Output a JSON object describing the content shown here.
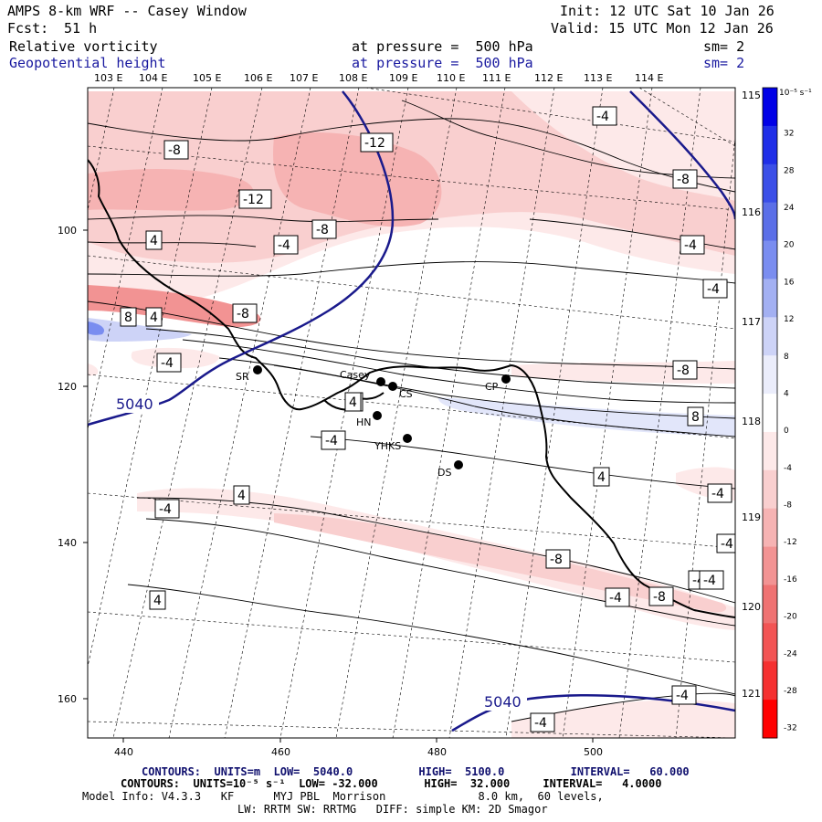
{
  "header": {
    "title": "AMPS 8-km WRF -- Casey Window",
    "fcst_label": "Fcst:",
    "fcst_value": "51 h",
    "init": "Init: 12 UTC Sat 10 Jan 26",
    "valid": "Valid: 15 UTC Mon 12 Jan 26",
    "field1": "Relative vorticity",
    "field1_level": "at pressure =  500 hPa",
    "field1_sm": "sm= 2",
    "field2": "Geopotential height",
    "field2_level": "at pressure =  500 hPa",
    "field2_sm": "sm= 2"
  },
  "axes": {
    "lon_top": [
      "103 E",
      "104 E",
      "105 E",
      "106 E",
      "107 E",
      "108 E",
      "109 E",
      "110 E",
      "111 E",
      "112 E",
      "113 E",
      "114 E"
    ],
    "lon_right": [
      "115 E",
      "116 E",
      "117 E",
      "118 E",
      "119 E",
      "120 E",
      "121 E"
    ],
    "x_ticks": [
      "440",
      "460",
      "480",
      "500"
    ],
    "y_ticks": [
      "100",
      "120",
      "140",
      "160"
    ]
  },
  "colorbar": {
    "unit": "10⁻⁵ s⁻¹",
    "levels": [
      "32",
      "28",
      "24",
      "20",
      "16",
      "12",
      "8",
      "4",
      "0",
      "-4",
      "-8",
      "-12",
      "-16",
      "-20",
      "-24",
      "-28",
      "-32"
    ],
    "colors": [
      "#0000e6",
      "#1f2ee8",
      "#3b4fe8",
      "#5b6fe8",
      "#7a8df0",
      "#a3b0f2",
      "#cdd3f7",
      "#ebedfb",
      "#ffffff",
      "#fde9e9",
      "#f9cfcf",
      "#f6b3b3",
      "#f29393",
      "#ef7272",
      "#f25454",
      "#f53030",
      "#ff0000"
    ]
  },
  "stations": [
    {
      "label": "SR"
    },
    {
      "label": "Casey"
    },
    {
      "label": "CS"
    },
    {
      "label": "CP"
    },
    {
      "label": "HN"
    },
    {
      "label": "YHKS"
    },
    {
      "label": "DS"
    }
  ],
  "contour_labels": {
    "height_values": [
      "5040",
      "5040"
    ],
    "vorticity_values": [
      "-12",
      "-8",
      "-12",
      "-8",
      "-4",
      "4",
      "-8",
      "-4",
      "-4",
      "8",
      "4",
      "-8",
      "-4",
      "-4",
      "-8",
      "-4",
      "4",
      "-4",
      "4",
      "8",
      "4",
      "-4",
      "-4",
      "-4",
      "-4",
      "-4",
      "-8",
      "-4",
      "-8",
      "4",
      "4",
      "-4",
      "-4"
    ]
  },
  "footer": {
    "height_contours": "CONTOURS:  UNITS=m  LOW=  5040.0          HIGH=  5100.0          INTERVAL=   60.000",
    "vort_contours": "CONTOURS:  UNITS=10⁻⁵ s⁻¹  LOW= -32.000       HIGH=  32.000     INTERVAL=   4.0000",
    "model_info": "Model Info: V4.3.3   KF      MYJ PBL  Morrison              8.0 km,  60 levels,",
    "physics": "LW: RRTM SW: RRTMG   DIFF: simple KM: 2D Smagor"
  }
}
